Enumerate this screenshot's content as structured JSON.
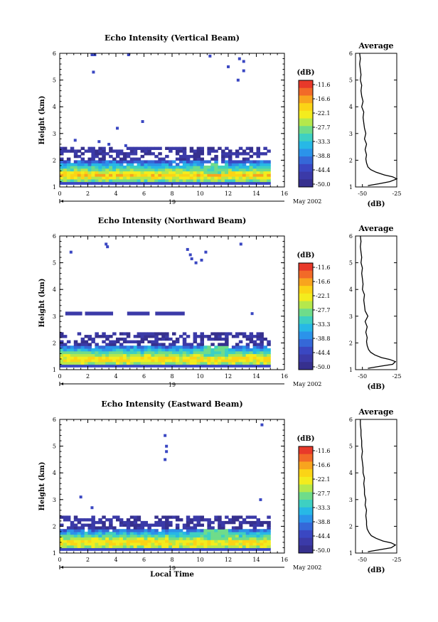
{
  "figure": {
    "date_label": "May 2002",
    "day_label": "19",
    "x_axis_label": "Local Time"
  },
  "colorbar": {
    "unit": "(dB)",
    "ticks": [
      "-11.6",
      "-16.6",
      "-22.1",
      "-27.7",
      "-33.3",
      "-38.8",
      "-44.4",
      "-50.0"
    ],
    "colors": [
      "#e8392a",
      "#f26a28",
      "#f8a41e",
      "#fbd416",
      "#f3ec1e",
      "#b5e84c",
      "#6fdc8a",
      "#3ed0c2",
      "#27b8e6",
      "#2b93ea",
      "#3568d8",
      "#3a47c2",
      "#3b3aa8",
      "#36308e"
    ]
  },
  "chart_data": [
    {
      "type": "heatmap",
      "title": "Echo Intensity (Vertical Beam)",
      "ylabel": "Height (km)",
      "xlim": [
        0,
        16
      ],
      "ylim": [
        1,
        6
      ],
      "xticks": [
        0,
        2,
        4,
        6,
        8,
        10,
        12,
        14,
        16
      ],
      "yticks": [
        1,
        2,
        3,
        4,
        5,
        6
      ],
      "zunit": "dB",
      "zlim": [
        -50.0,
        -11.6
      ],
      "data_extent_hours": [
        0,
        14.8
      ],
      "layer_top_km": 2.45,
      "peak_height_km": 1.4,
      "sparse_echoes": [
        [
          2.2,
          5.95
        ],
        [
          2.4,
          5.95
        ],
        [
          2.3,
          5.3
        ],
        [
          4.8,
          5.95
        ],
        [
          5.8,
          3.45
        ],
        [
          10.6,
          5.9
        ],
        [
          11.9,
          5.5
        ],
        [
          12.7,
          5.8
        ],
        [
          13.0,
          5.7
        ],
        [
          12.6,
          5.0
        ],
        [
          13.0,
          5.35
        ],
        [
          4.0,
          3.2
        ],
        [
          1.0,
          2.75
        ],
        [
          2.7,
          2.7
        ],
        [
          3.4,
          2.6
        ],
        [
          4.6,
          2.55
        ]
      ],
      "profile": {
        "title": "Average",
        "xlabel": "(dB)",
        "ylabel": "",
        "xlim": [
          -55,
          -25
        ],
        "xticks": [
          -50,
          -25
        ],
        "ylim": [
          1,
          6
        ],
        "height_km": [
          1.05,
          1.12,
          1.2,
          1.3,
          1.38,
          1.45,
          1.55,
          1.65,
          1.75,
          1.9,
          2.05,
          2.2,
          2.4,
          2.6,
          2.8,
          3.0,
          3.2,
          3.4,
          3.6,
          3.8,
          4.0,
          4.2,
          4.4,
          4.6,
          4.8,
          5.0,
          5.2,
          5.4,
          5.6,
          5.8,
          6.0
        ],
        "intensity_db": [
          -46,
          -38,
          -30,
          -25,
          -28,
          -34,
          -40,
          -44,
          -46,
          -47,
          -47.5,
          -47,
          -48,
          -47,
          -48.5,
          -47.5,
          -48.5,
          -49,
          -49.5,
          -49,
          -50.5,
          -49.5,
          -50.5,
          -51,
          -50.5,
          -51.5,
          -51,
          -51.5,
          -52,
          -51.5,
          -52
        ]
      }
    },
    {
      "type": "heatmap",
      "title": "Echo Intensity (Northward Beam)",
      "ylabel": "Height (km)",
      "xlim": [
        0,
        16
      ],
      "ylim": [
        1,
        6
      ],
      "xticks": [
        0,
        2,
        4,
        6,
        8,
        10,
        12,
        14,
        16
      ],
      "yticks": [
        1,
        2,
        3,
        4,
        5,
        6
      ],
      "zunit": "dB",
      "zlim": [
        -50.0,
        -11.6
      ],
      "data_extent_hours": [
        0,
        14.8
      ],
      "layer_top_km": 2.35,
      "peak_height_km": 1.35,
      "elevated_layer": {
        "height_km": 3.1,
        "x_ranges": [
          [
            0.4,
            1.6
          ],
          [
            1.8,
            3.8
          ],
          [
            4.8,
            6.4
          ],
          [
            6.8,
            8.9
          ]
        ]
      },
      "sparse_echoes": [
        [
          0.7,
          5.4
        ],
        [
          3.2,
          5.7
        ],
        [
          3.3,
          5.6
        ],
        [
          9.0,
          5.5
        ],
        [
          9.2,
          5.3
        ],
        [
          9.3,
          5.15
        ],
        [
          9.6,
          5.0
        ],
        [
          10.0,
          5.1
        ],
        [
          10.3,
          5.4
        ],
        [
          12.8,
          5.7
        ],
        [
          13.6,
          3.1
        ]
      ],
      "profile": {
        "title": "Average",
        "xlabel": "(dB)",
        "ylabel": "",
        "xlim": [
          -55,
          -25
        ],
        "xticks": [
          -50,
          -25
        ],
        "ylim": [
          1,
          6
        ],
        "height_km": [
          1.05,
          1.12,
          1.2,
          1.3,
          1.38,
          1.45,
          1.55,
          1.65,
          1.75,
          1.9,
          2.05,
          2.2,
          2.4,
          2.6,
          2.8,
          3.0,
          3.2,
          3.4,
          3.6,
          3.8,
          4.0,
          4.2,
          4.4,
          4.6,
          4.8,
          5.0,
          5.2,
          5.4,
          5.6,
          5.8,
          6.0
        ],
        "intensity_db": [
          -46,
          -38,
          -28,
          -26,
          -30,
          -36,
          -41,
          -44,
          -45.5,
          -46.5,
          -47,
          -46.5,
          -47.5,
          -46.5,
          -48,
          -46,
          -48,
          -48.5,
          -49,
          -48.5,
          -50,
          -49.5,
          -50,
          -50.5,
          -50,
          -51,
          -50.5,
          -51,
          -51.5,
          -51,
          -51.5
        ]
      }
    },
    {
      "type": "heatmap",
      "title": "Echo Intensity (Eastward Beam)",
      "ylabel": "Height (km)",
      "xlabel": "Local Time",
      "xlim": [
        0,
        16
      ],
      "ylim": [
        1,
        6
      ],
      "xticks": [
        0,
        2,
        4,
        6,
        8,
        10,
        12,
        14,
        16
      ],
      "yticks": [
        1,
        2,
        3,
        4,
        5,
        6
      ],
      "zunit": "dB",
      "zlim": [
        -50.0,
        -11.6
      ],
      "data_extent_hours": [
        0,
        14.8
      ],
      "layer_top_km": 2.35,
      "peak_height_km": 1.35,
      "sparse_echoes": [
        [
          1.4,
          3.1
        ],
        [
          2.2,
          2.7
        ],
        [
          7.4,
          5.4
        ],
        [
          7.5,
          5.0
        ],
        [
          7.5,
          4.8
        ],
        [
          7.4,
          4.5
        ],
        [
          14.3,
          5.8
        ],
        [
          14.2,
          3.0
        ]
      ],
      "profile": {
        "title": "Average",
        "xlabel": "(dB)",
        "ylabel": "",
        "xlim": [
          -55,
          -25
        ],
        "xticks": [
          -50,
          -25
        ],
        "ylim": [
          1,
          6
        ],
        "height_km": [
          1.05,
          1.12,
          1.2,
          1.3,
          1.38,
          1.45,
          1.55,
          1.65,
          1.75,
          1.9,
          2.05,
          2.2,
          2.4,
          2.6,
          2.8,
          3.0,
          3.2,
          3.4,
          3.6,
          3.8,
          4.0,
          4.2,
          4.4,
          4.6,
          4.8,
          5.0,
          5.2,
          5.4,
          5.6,
          5.8,
          6.0
        ],
        "intensity_db": [
          -46,
          -38,
          -29,
          -26,
          -29,
          -35,
          -40,
          -43.5,
          -45,
          -46.5,
          -47,
          -47,
          -47.5,
          -47,
          -48,
          -47.5,
          -48.5,
          -48.5,
          -49,
          -48.5,
          -49.5,
          -49.5,
          -50,
          -50.5,
          -50,
          -50.5,
          -50.5,
          -51,
          -51,
          -51.5,
          -51.5
        ]
      }
    }
  ]
}
